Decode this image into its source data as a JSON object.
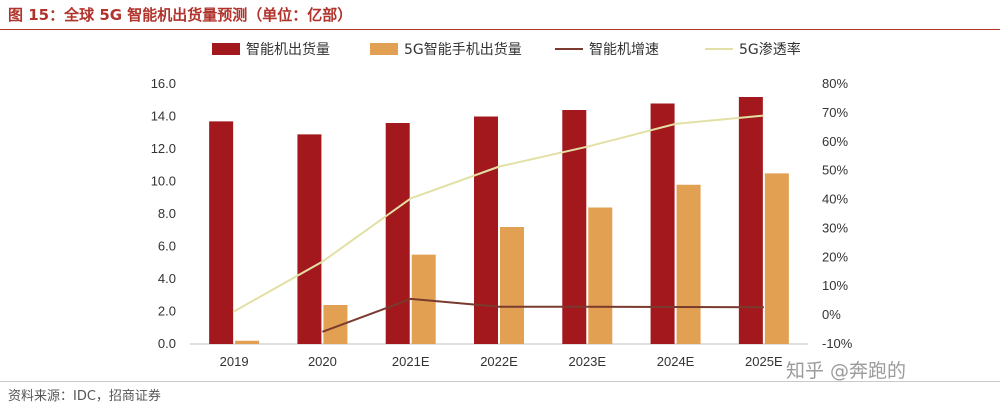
{
  "figure": {
    "title": "图 15：全球 5G 智能机出货量预测（单位：亿部）",
    "source": "资料来源：IDC，招商证券",
    "watermark": "知乎 @奔跑的"
  },
  "chart_data": {
    "type": "bar",
    "title": "全球5G智能机出货量预测（单位：亿部）",
    "categories": [
      "2019",
      "2020",
      "2021E",
      "2022E",
      "2023E",
      "2024E",
      "2025E"
    ],
    "series": [
      {
        "name": "智能机出货量",
        "type": "bar",
        "axis": "left",
        "color": "#a3181d",
        "values": [
          13.7,
          12.9,
          13.6,
          14.0,
          14.4,
          14.8,
          15.2
        ]
      },
      {
        "name": "5G智能手机出货量",
        "type": "bar",
        "axis": "left",
        "color": "#e2a053",
        "values": [
          0.2,
          2.4,
          5.5,
          7.2,
          8.4,
          9.8,
          10.5
        ]
      },
      {
        "name": "智能机增速",
        "type": "line",
        "axis": "right",
        "color": "#7a3b2e",
        "values": [
          null,
          -5.8,
          5.6,
          2.9,
          2.9,
          2.8,
          2.7
        ]
      },
      {
        "name": "5G渗透率",
        "type": "line",
        "axis": "right",
        "color": "#e3e0a6",
        "values": [
          1.3,
          18.5,
          40.4,
          51.4,
          58.3,
          66.2,
          69.1
        ]
      }
    ],
    "y_left": {
      "min": 0,
      "max": 16,
      "step": 2,
      "tick_labels": [
        "0.0",
        "2.0",
        "4.0",
        "6.0",
        "8.0",
        "10.0",
        "12.0",
        "14.0",
        "16.0"
      ]
    },
    "y_right": {
      "min": -10,
      "max": 80,
      "step": 10,
      "tick_labels": [
        "-10%",
        "0%",
        "10%",
        "20%",
        "30%",
        "40%",
        "50%",
        "60%",
        "70%",
        "80%"
      ]
    },
    "legend_position": "top"
  }
}
